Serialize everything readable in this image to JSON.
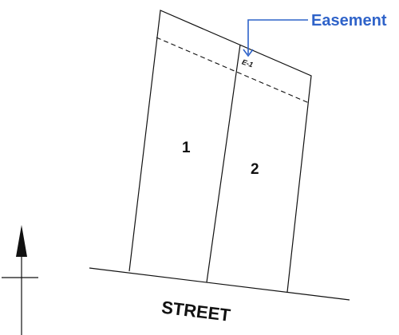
{
  "lots": [
    {
      "label": "1"
    },
    {
      "label": "2"
    }
  ],
  "easement": {
    "code": "E-1",
    "callout_label": "Easement"
  },
  "street": {
    "label": "STREET"
  },
  "colors": {
    "line": "#111111",
    "callout": "#2f63c9",
    "background": "#ffffff"
  },
  "icons": {
    "north_arrow": "north-arrow-icon"
  }
}
